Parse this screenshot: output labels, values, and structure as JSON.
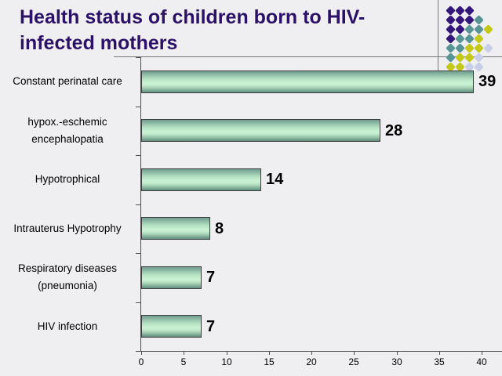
{
  "slide": {
    "title": "Health status of children born to HIV-infected mothers",
    "background_color": "#efeef0",
    "title_color": "#2b1168"
  },
  "decor": {
    "line_color": "#787878",
    "dot_colors": {
      "purple": "#33177b",
      "teal": "#579595",
      "yellow": "#c3c916",
      "pale": "#c7cfe8"
    },
    "dot_rows": [
      [
        "purple",
        "purple",
        "purple"
      ],
      [
        "purple",
        "purple",
        "purple",
        "teal"
      ],
      [
        "purple",
        "purple",
        "teal",
        "teal",
        "yellow"
      ],
      [
        "purple",
        "teal",
        "teal",
        "yellow"
      ],
      [
        "teal",
        "teal",
        "yellow",
        "yellow",
        "pale"
      ],
      [
        "teal",
        "yellow",
        "yellow",
        "pale"
      ],
      [
        "yellow",
        "yellow",
        "pale",
        "pale"
      ]
    ]
  },
  "chart_data": {
    "type": "bar",
    "orientation": "horizontal",
    "title": "",
    "categories": [
      "Constant perinatal care",
      "hypox.-eschemic encephalopatia",
      "Hypotrophical",
      "Intrauterus Hypotrophy",
      "Respiratory diseases (pneumonia)",
      "HIV infection"
    ],
    "values": [
      39,
      28,
      14,
      8,
      7,
      7
    ],
    "data_labels": [
      39,
      28,
      14,
      8,
      7,
      7
    ],
    "xlabel": "",
    "ylabel": "",
    "xlim": [
      0,
      40
    ],
    "x_ticks": [
      0,
      5,
      10,
      15,
      20,
      25,
      30,
      35,
      40
    ],
    "grid": false,
    "legend": false,
    "bar_fill_light": "#c9f1d3",
    "bar_fill_dark": "#5f8d7f",
    "bar_border_color": "#3f3f3f",
    "axis_color": "#4d4d4d",
    "label_color": "#000000"
  }
}
